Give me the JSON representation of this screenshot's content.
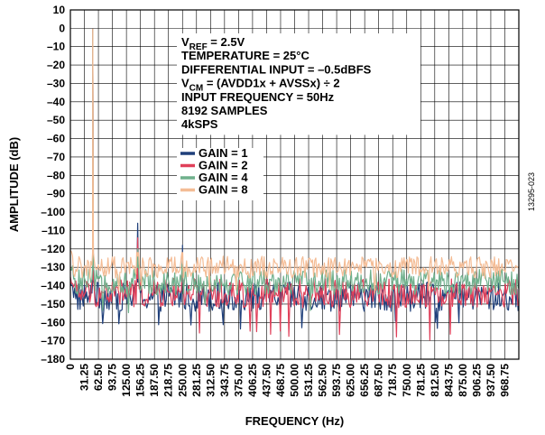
{
  "chart_data": {
    "type": "line",
    "title": "",
    "xlabel": "FREQUENCY (Hz)",
    "ylabel": "AMPLITUDE (dB)",
    "xlim": [
      0,
      1000
    ],
    "ylim": [
      -180,
      10
    ],
    "grid": true,
    "x_ticks": [
      "0",
      "31.25",
      "62.50",
      "93.75",
      "125.00",
      "156.25",
      "187.50",
      "218.75",
      "250.00",
      "281.25",
      "312.50",
      "343.75",
      "375.00",
      "406.25",
      "437.50",
      "468.75",
      "500.00",
      "531.25",
      "562.50",
      "593.75",
      "625.00",
      "656.25",
      "687.50",
      "718.75",
      "750.00",
      "781.25",
      "812.50",
      "843.75",
      "875.00",
      "906.25",
      "937.50",
      "968.75"
    ],
    "y_ticks": [
      "10",
      "0",
      "–10",
      "–20",
      "–30",
      "–40",
      "–50",
      "–60",
      "–70",
      "–80",
      "–90",
      "–100",
      "–110",
      "–120",
      "–130",
      "–140",
      "–150",
      "–160",
      "–170",
      "–180"
    ],
    "annotations": [
      {
        "main": "V",
        "sub": "REF",
        "rest": " = 2.5V"
      },
      {
        "main": "TEMPERATURE = 25°C",
        "sub": "",
        "rest": ""
      },
      {
        "main": "DIFFERENTIAL INPUT = –0.5dBFS",
        "sub": "",
        "rest": ""
      },
      {
        "main": "V",
        "sub": "CM",
        "rest": " = (AVDD1x + AVSSx) ÷ 2"
      },
      {
        "main": "INPUT FREQUENCY = 50Hz",
        "sub": "",
        "rest": ""
      },
      {
        "main": "8192 SAMPLES",
        "sub": "",
        "rest": ""
      },
      {
        "main": "4kSPS",
        "sub": "",
        "rest": ""
      }
    ],
    "legend_position": "center",
    "series": [
      {
        "name": "GAIN = 1",
        "color": "#1f3f7a",
        "floor": -146,
        "spread": 8,
        "low_spike": -164,
        "peaks": [
          {
            "x": 50,
            "y": -0.5
          },
          {
            "x": 150,
            "y": -106
          },
          {
            "x": 250,
            "y": -118
          }
        ]
      },
      {
        "name": "GAIN = 2",
        "color": "#e0405a",
        "floor": -144,
        "spread": 8,
        "low_spike": -170,
        "peaks": [
          {
            "x": 50,
            "y": -0.5
          },
          {
            "x": 150,
            "y": -114
          },
          {
            "x": 250,
            "y": -124
          }
        ]
      },
      {
        "name": "GAIN = 4",
        "color": "#6fb08c",
        "floor": -138,
        "spread": 7,
        "low_spike": -155,
        "peaks": [
          {
            "x": 50,
            "y": -0.5
          },
          {
            "x": 150,
            "y": -120
          },
          {
            "x": 250,
            "y": -126
          }
        ]
      },
      {
        "name": "GAIN = 8",
        "color": "#f4bc95",
        "floor": -130,
        "spread": 6,
        "low_spike": -145,
        "peaks": [
          {
            "x": 50,
            "y": -0.5
          },
          {
            "x": 150,
            "y": -124
          },
          {
            "x": 250,
            "y": -128
          }
        ]
      }
    ],
    "figure_id": "13295-023"
  }
}
